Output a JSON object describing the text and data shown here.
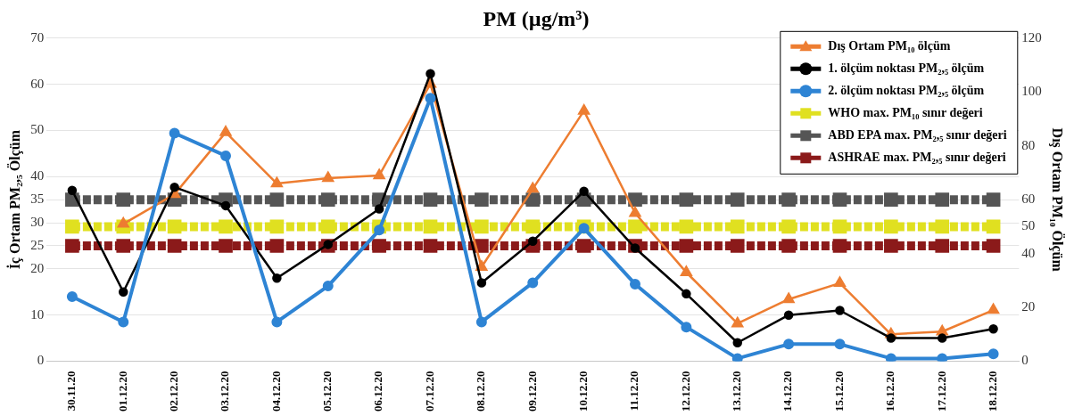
{
  "chart_data": {
    "type": "line",
    "title": "PM (µg/m³)",
    "ylabel": "İç Ortam PM₂,₅ Ölçüm",
    "y2label": "Dış Ortam PM₁₀ Ölçüm",
    "categories": [
      "30.11.20",
      "01.12.20",
      "02.12.20",
      "03.12.20",
      "04.12.20",
      "05.12.20",
      "06.12.20",
      "07.12.20",
      "08.12.20",
      "09.12.20",
      "10.12.20",
      "11.12.20",
      "12.12.20",
      "13.12.20",
      "14.12.20",
      "15.12.20",
      "16.12.20",
      "17.12.20",
      "18.12.20"
    ],
    "ylim": [
      0,
      70
    ],
    "yticks": [
      0,
      10,
      20,
      25,
      30,
      35,
      40,
      50,
      60,
      70
    ],
    "y2lim": [
      0,
      120
    ],
    "y2ticks": [
      0,
      20,
      40,
      50,
      60,
      80,
      100,
      120
    ],
    "grid": "y",
    "legend": "top right",
    "line_style": "solid",
    "series": [
      {
        "name": "Dış Ortam PM₁₀ ölçüm",
        "color": "#ed7d31",
        "axis": "y2",
        "marker": "triangle",
        "values": [
          null,
          51,
          62,
          85,
          66,
          68,
          69,
          103,
          35,
          64,
          93,
          55,
          33,
          14,
          23,
          29,
          10,
          11,
          19
        ]
      },
      {
        "name": "1. ölçüm noktası PM₂,₅ ölçüm",
        "color": "#000000",
        "marker": "circle",
        "values": [
          37,
          15,
          37.7,
          33.7,
          18,
          25.3,
          33,
          62.3,
          17,
          26,
          36.8,
          24.5,
          14.6,
          4,
          10,
          11,
          5,
          5,
          7
        ]
      },
      {
        "name": "2. ölçüm noktası PM₂,₅ ölçüm",
        "color": "#2e84d4",
        "marker": "circle",
        "values": [
          14,
          8.5,
          49.4,
          44.5,
          8.5,
          16.3,
          28.4,
          57,
          8.5,
          17,
          28.8,
          16.7,
          7.4,
          0.6,
          3.7,
          3.7,
          0.6,
          0.6,
          1.6
        ]
      },
      {
        "name": "WHO max. PM₁₀ sınır değeri",
        "color": "#e0e020",
        "axis": "y2",
        "marker": "square",
        "line_style": "dashed",
        "values": [
          50,
          50,
          50,
          50,
          50,
          50,
          50,
          50,
          50,
          50,
          50,
          50,
          50,
          50,
          50,
          50,
          50,
          50,
          50
        ]
      },
      {
        "name": "ABD EPA max. PM₂,₅ sınır değeri",
        "color": "#555555",
        "marker": "square",
        "line_style": "dashed",
        "values": [
          35,
          35,
          35,
          35,
          35,
          35,
          35,
          35,
          35,
          35,
          35,
          35,
          35,
          35,
          35,
          35,
          35,
          35,
          35
        ]
      },
      {
        "name": "ASHRAE max. PM₂,₅ sınır değeri",
        "color": "#8b1a1a",
        "marker": "square",
        "line_style": "dashed",
        "values": [
          25,
          25,
          25,
          25,
          25,
          25,
          25,
          25,
          25,
          25,
          25,
          25,
          25,
          25,
          25,
          25,
          25,
          25,
          25
        ]
      }
    ]
  }
}
